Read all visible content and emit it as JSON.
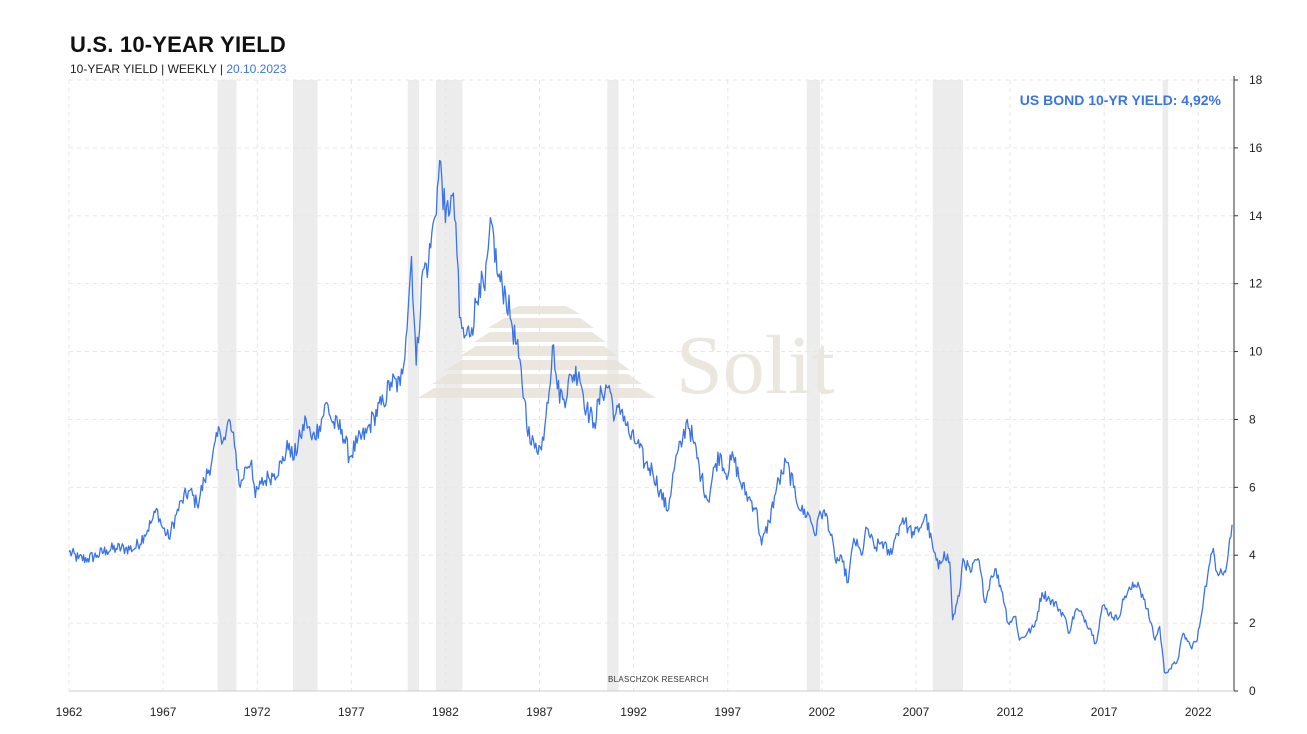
{
  "header": {
    "title": "U.S. 10-YEAR YIELD",
    "subtitle_prefix": "10-YEAR YIELD |  WEEKLY | ",
    "subtitle_date": "20.10.2023"
  },
  "value_label": "US BOND 10-YR YIELD: 4,92%",
  "credit": "BLASCHZOK   RESEARCH",
  "watermark": "Solit",
  "colors": {
    "line": "#3a74e8",
    "recession": "#ececec",
    "grid": "#e6e6e6",
    "accent": "#3a74e8"
  },
  "chart_data": {
    "type": "line",
    "title": "U.S. 10-YEAR YIELD",
    "xlabel": "",
    "ylabel": "",
    "xlim": [
      1962.0,
      2023.9
    ],
    "ylim": [
      0,
      18
    ],
    "x_ticks": [
      1962,
      1967,
      1972,
      1977,
      1982,
      1987,
      1992,
      1997,
      2002,
      2007,
      2012,
      2017,
      2022
    ],
    "y_ticks": [
      0,
      2,
      4,
      6,
      8,
      10,
      12,
      14,
      16,
      18
    ],
    "y_axis_side": "right",
    "grid": true,
    "recessions": [
      [
        1969.9,
        1970.9
      ],
      [
        1973.9,
        1975.2
      ],
      [
        1980.0,
        1980.6
      ],
      [
        1981.5,
        1982.9
      ],
      [
        1990.6,
        1991.2
      ],
      [
        2001.2,
        2001.9
      ],
      [
        2007.9,
        2009.5
      ],
      [
        2020.1,
        2020.4
      ]
    ],
    "series": [
      {
        "name": "US BOND 10-YR YIELD",
        "points": [
          [
            1962.0,
            4.1
          ],
          [
            1962.5,
            3.9
          ],
          [
            1963.0,
            3.9
          ],
          [
            1963.5,
            4.0
          ],
          [
            1964.0,
            4.15
          ],
          [
            1964.5,
            4.2
          ],
          [
            1965.0,
            4.2
          ],
          [
            1965.5,
            4.2
          ],
          [
            1966.0,
            4.6
          ],
          [
            1966.4,
            5.0
          ],
          [
            1966.7,
            5.35
          ],
          [
            1966.9,
            4.9
          ],
          [
            1967.3,
            4.5
          ],
          [
            1967.7,
            5.2
          ],
          [
            1968.0,
            5.6
          ],
          [
            1968.4,
            5.9
          ],
          [
            1968.8,
            5.5
          ],
          [
            1969.2,
            6.2
          ],
          [
            1969.6,
            6.8
          ],
          [
            1970.0,
            7.7
          ],
          [
            1970.3,
            7.4
          ],
          [
            1970.5,
            8.0
          ],
          [
            1970.8,
            7.2
          ],
          [
            1971.1,
            6.0
          ],
          [
            1971.4,
            6.6
          ],
          [
            1971.7,
            6.8
          ],
          [
            1971.9,
            5.7
          ],
          [
            1972.2,
            6.1
          ],
          [
            1972.6,
            6.3
          ],
          [
            1972.9,
            6.4
          ],
          [
            1973.3,
            6.7
          ],
          [
            1973.7,
            7.3
          ],
          [
            1973.9,
            6.8
          ],
          [
            1974.3,
            7.5
          ],
          [
            1974.6,
            8.0
          ],
          [
            1974.9,
            7.4
          ],
          [
            1975.3,
            7.8
          ],
          [
            1975.7,
            8.5
          ],
          [
            1976.0,
            7.9
          ],
          [
            1976.5,
            7.7
          ],
          [
            1976.9,
            6.9
          ],
          [
            1977.3,
            7.3
          ],
          [
            1977.8,
            7.6
          ],
          [
            1978.2,
            8.1
          ],
          [
            1978.7,
            8.5
          ],
          [
            1979.1,
            9.1
          ],
          [
            1979.6,
            9.0
          ],
          [
            1979.9,
            10.4
          ],
          [
            1980.2,
            12.8
          ],
          [
            1980.45,
            9.6
          ],
          [
            1980.8,
            12.4
          ],
          [
            1981.1,
            12.6
          ],
          [
            1981.4,
            13.9
          ],
          [
            1981.75,
            15.6
          ],
          [
            1982.0,
            13.8
          ],
          [
            1982.3,
            14.6
          ],
          [
            1982.55,
            13.8
          ],
          [
            1982.75,
            11.0
          ],
          [
            1983.0,
            10.4
          ],
          [
            1983.4,
            10.7
          ],
          [
            1983.8,
            12.0
          ],
          [
            1984.1,
            11.8
          ],
          [
            1984.45,
            13.8
          ],
          [
            1984.8,
            12.2
          ],
          [
            1985.2,
            11.7
          ],
          [
            1985.5,
            10.9
          ],
          [
            1985.9,
            9.8
          ],
          [
            1986.2,
            8.6
          ],
          [
            1986.5,
            7.3
          ],
          [
            1986.8,
            7.3
          ],
          [
            1987.1,
            7.1
          ],
          [
            1987.4,
            8.5
          ],
          [
            1987.75,
            10.2
          ],
          [
            1987.95,
            8.9
          ],
          [
            1988.3,
            8.6
          ],
          [
            1988.7,
            9.3
          ],
          [
            1989.1,
            9.4
          ],
          [
            1989.5,
            8.3
          ],
          [
            1989.9,
            7.9
          ],
          [
            1990.3,
            8.8
          ],
          [
            1990.7,
            9.0
          ],
          [
            1991.0,
            8.1
          ],
          [
            1991.4,
            8.3
          ],
          [
            1991.8,
            7.5
          ],
          [
            1992.2,
            7.3
          ],
          [
            1992.6,
            6.7
          ],
          [
            1993.0,
            6.5
          ],
          [
            1993.4,
            5.9
          ],
          [
            1993.8,
            5.3
          ],
          [
            1994.2,
            6.7
          ],
          [
            1994.6,
            7.4
          ],
          [
            1994.85,
            8.0
          ],
          [
            1995.2,
            7.3
          ],
          [
            1995.6,
            6.3
          ],
          [
            1995.95,
            5.6
          ],
          [
            1996.3,
            6.6
          ],
          [
            1996.6,
            7.0
          ],
          [
            1996.9,
            6.4
          ],
          [
            1997.3,
            6.9
          ],
          [
            1997.7,
            6.1
          ],
          [
            1998.1,
            5.7
          ],
          [
            1998.5,
            5.4
          ],
          [
            1998.8,
            4.3
          ],
          [
            1999.2,
            5.0
          ],
          [
            1999.6,
            6.0
          ],
          [
            1999.9,
            6.4
          ],
          [
            2000.1,
            6.75
          ],
          [
            2000.5,
            6.0
          ],
          [
            2000.9,
            5.3
          ],
          [
            2001.3,
            5.2
          ],
          [
            2001.7,
            4.6
          ],
          [
            2001.9,
            5.3
          ],
          [
            2002.3,
            5.1
          ],
          [
            2002.7,
            3.9
          ],
          [
            2003.1,
            3.8
          ],
          [
            2003.4,
            3.2
          ],
          [
            2003.7,
            4.5
          ],
          [
            2004.1,
            4.0
          ],
          [
            2004.4,
            4.8
          ],
          [
            2004.8,
            4.2
          ],
          [
            2005.2,
            4.4
          ],
          [
            2005.6,
            4.0
          ],
          [
            2005.9,
            4.5
          ],
          [
            2006.3,
            5.1
          ],
          [
            2006.6,
            4.8
          ],
          [
            2006.9,
            4.6
          ],
          [
            2007.2,
            4.8
          ],
          [
            2007.5,
            5.2
          ],
          [
            2007.9,
            4.2
          ],
          [
            2008.2,
            3.6
          ],
          [
            2008.5,
            4.1
          ],
          [
            2008.8,
            3.8
          ],
          [
            2008.95,
            2.1
          ],
          [
            2009.3,
            2.8
          ],
          [
            2009.5,
            3.9
          ],
          [
            2009.9,
            3.5
          ],
          [
            2010.3,
            3.9
          ],
          [
            2010.7,
            2.6
          ],
          [
            2010.95,
            3.3
          ],
          [
            2011.2,
            3.6
          ],
          [
            2011.6,
            2.9
          ],
          [
            2011.9,
            2.0
          ],
          [
            2012.3,
            2.2
          ],
          [
            2012.5,
            1.5
          ],
          [
            2012.9,
            1.7
          ],
          [
            2013.3,
            1.9
          ],
          [
            2013.7,
            2.9
          ],
          [
            2014.1,
            2.7
          ],
          [
            2014.5,
            2.5
          ],
          [
            2014.9,
            2.2
          ],
          [
            2015.1,
            1.7
          ],
          [
            2015.5,
            2.4
          ],
          [
            2015.9,
            2.2
          ],
          [
            2016.3,
            1.8
          ],
          [
            2016.55,
            1.4
          ],
          [
            2016.9,
            2.5
          ],
          [
            2017.3,
            2.3
          ],
          [
            2017.7,
            2.1
          ],
          [
            2018.1,
            2.8
          ],
          [
            2018.4,
            3.0
          ],
          [
            2018.8,
            3.2
          ],
          [
            2019.1,
            2.7
          ],
          [
            2019.5,
            2.0
          ],
          [
            2019.7,
            1.5
          ],
          [
            2019.95,
            1.9
          ],
          [
            2020.2,
            0.55
          ],
          [
            2020.5,
            0.65
          ],
          [
            2020.9,
            0.9
          ],
          [
            2021.2,
            1.7
          ],
          [
            2021.6,
            1.3
          ],
          [
            2021.95,
            1.5
          ],
          [
            2022.3,
            2.8
          ],
          [
            2022.5,
            3.4
          ],
          [
            2022.8,
            4.2
          ],
          [
            2023.0,
            3.5
          ],
          [
            2023.2,
            3.6
          ],
          [
            2023.45,
            3.5
          ],
          [
            2023.6,
            4.1
          ],
          [
            2023.8,
            4.9
          ]
        ]
      }
    ]
  }
}
